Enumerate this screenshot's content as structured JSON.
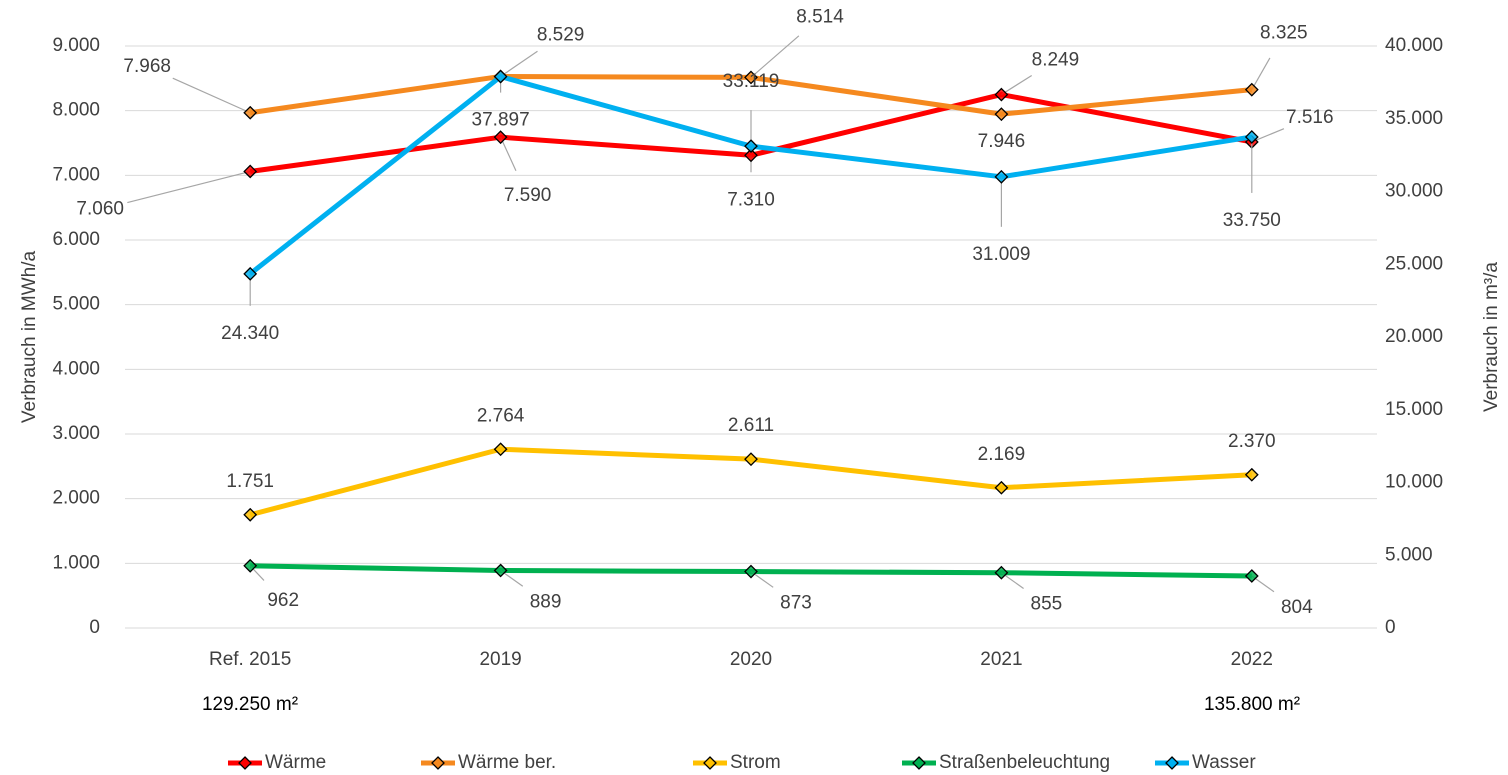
{
  "chart_data": {
    "type": "line",
    "categories": [
      "Ref. 2015",
      "2019",
      "2020",
      "2021",
      "2022"
    ],
    "annotations": [
      "129.250 m²",
      "135.800 m²"
    ],
    "ylabel": "Verbrauch in MWh/a",
    "y2label": "Verbrauch in m³/a",
    "ylim": [
      0,
      9000
    ],
    "yticks": [
      0,
      {
        "value": 1000,
        "label": "1.000"
      },
      {
        "value": 2000,
        "label": "2.000"
      },
      {
        "value": 3000,
        "label": "3.000"
      },
      {
        "value": 4000,
        "label": "4.000"
      },
      {
        "value": 5000,
        "label": "5.000"
      },
      {
        "value": 6000,
        "label": "6.000"
      },
      {
        "value": 7000,
        "label": "7.000"
      },
      {
        "value": 8000,
        "label": "8.000"
      },
      {
        "value": 9000,
        "label": "9.000"
      }
    ],
    "y2lim": [
      0,
      40000
    ],
    "y2ticks": [
      0,
      {
        "value": 5000,
        "label": "5.000"
      },
      {
        "value": 10000,
        "label": "10.000"
      },
      {
        "value": 15000,
        "label": "15.000"
      },
      {
        "value": 20000,
        "label": "20.000"
      },
      {
        "value": 25000,
        "label": "25.000"
      },
      {
        "value": 30000,
        "label": "30.000"
      },
      {
        "value": 35000,
        "label": "35.000"
      },
      {
        "value": 40000,
        "label": "40.000"
      }
    ],
    "grid": true,
    "legend": "bottom",
    "series": [
      {
        "name": "Wärme",
        "color": "#ff0000",
        "values": [
          7060,
          7590,
          7310,
          8249,
          7516
        ],
        "value_labels": [
          "7.060",
          "7.590",
          "7.310",
          "8.249",
          "7.516"
        ]
      },
      {
        "name": "Wärme ber.",
        "color": "#f5891f",
        "values": [
          7968,
          8529,
          8514,
          7946,
          8325
        ],
        "value_labels": [
          "7.968",
          "8.529",
          "8.514",
          "7.946",
          "8.325"
        ]
      },
      {
        "name": "Strom",
        "color": "#ffc000",
        "values": [
          1751,
          2764,
          2611,
          2169,
          2370
        ],
        "value_labels": [
          "1.751",
          "2.764",
          "2.611",
          "2.169",
          "2.370"
        ]
      },
      {
        "name": "Straßenbeleuchtung",
        "color": "#00b050",
        "values": [
          962,
          889,
          873,
          855,
          804
        ]
      },
      {
        "name": "Wasser",
        "color": "#00b0f0",
        "axis": "y2",
        "values": [
          24340,
          37897,
          33119,
          31009,
          33750
        ],
        "value_labels": [
          "24.340",
          "37.897",
          "33.119",
          "31.009",
          "33.750"
        ]
      }
    ]
  }
}
